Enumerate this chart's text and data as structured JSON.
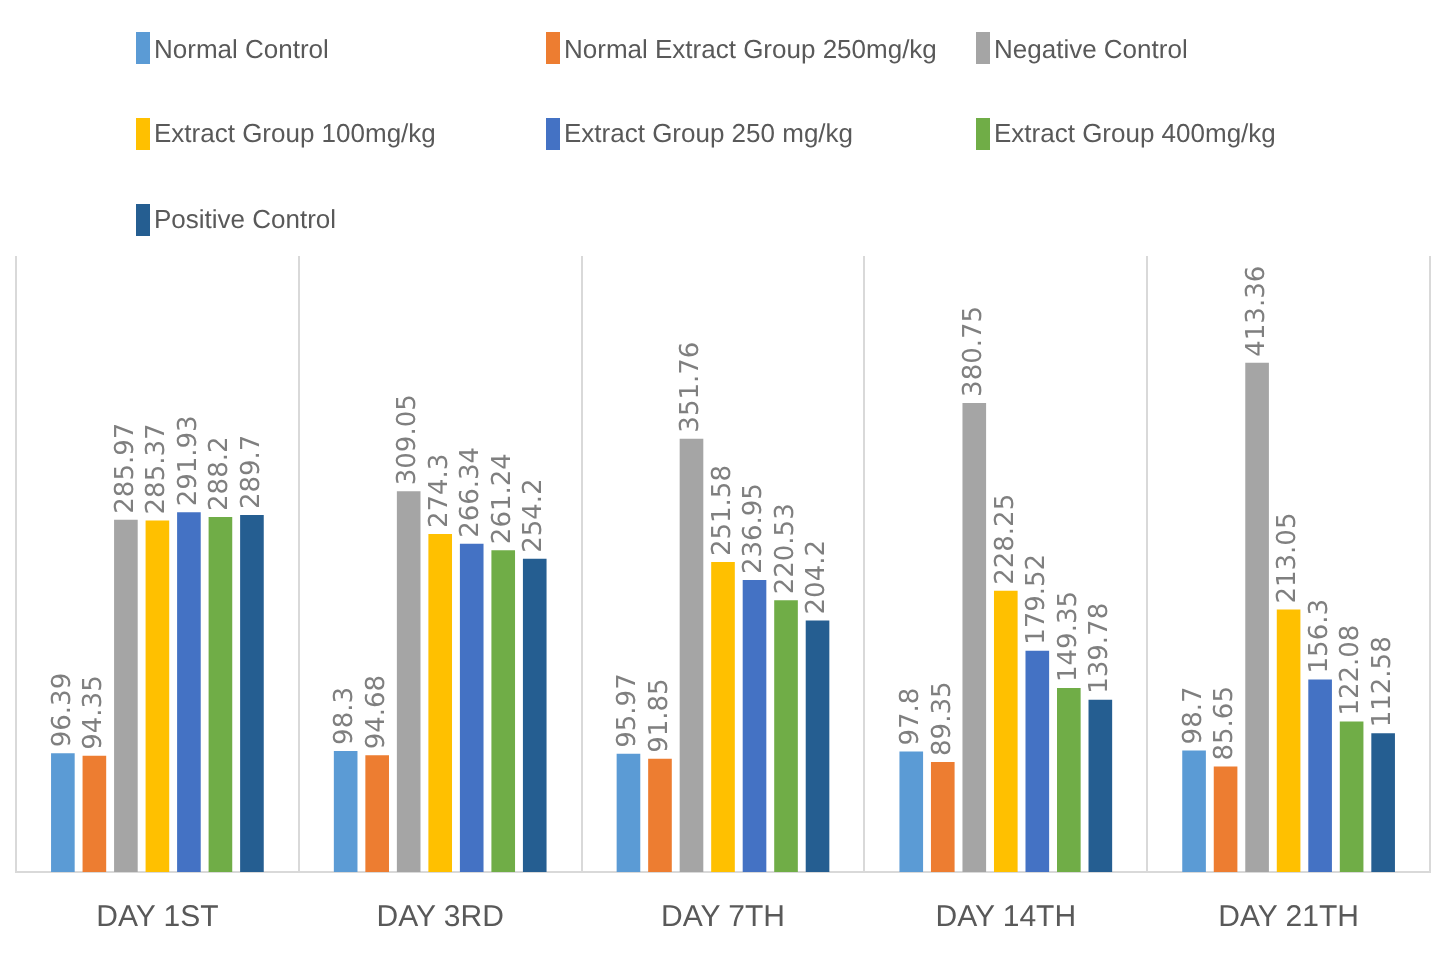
{
  "chart_data": {
    "type": "bar",
    "categories": [
      "DAY 1ST",
      "DAY 3RD",
      "DAY 7TH",
      "DAY 14TH",
      "DAY 21TH"
    ],
    "legend": "top",
    "grid": "x",
    "data_labels": true,
    "tick_labels": "x",
    "series": [
      {
        "name": "Normal Control",
        "color": "#5b9bd5",
        "values": [
          96.39,
          98.3,
          95.97,
          97.8,
          98.7
        ]
      },
      {
        "name": "Normal Extract Group 250mg/kg",
        "color": "#ed7d31",
        "values": [
          94.35,
          94.68,
          91.85,
          89.35,
          85.65
        ]
      },
      {
        "name": "Negative Control",
        "color": "#a5a5a5",
        "values": [
          285.97,
          309.05,
          351.76,
          380.75,
          413.36
        ]
      },
      {
        "name": "Extract Group 100mg/kg",
        "color": "#ffc000",
        "values": [
          285.37,
          274.3,
          251.58,
          228.25,
          213.05
        ]
      },
      {
        "name": "Extract Group 250 mg/kg",
        "color": "#4472c4",
        "values": [
          291.93,
          266.34,
          236.95,
          179.52,
          156.3
        ]
      },
      {
        "name": "Extract Group 400mg/kg",
        "color": "#70ad47",
        "values": [
          288.2,
          261.24,
          220.53,
          149.35,
          122.08
        ]
      },
      {
        "name": "Positive Control",
        "color": "#255e91",
        "values": [
          289.7,
          254.2,
          204.2,
          139.78,
          112.58
        ]
      }
    ]
  }
}
